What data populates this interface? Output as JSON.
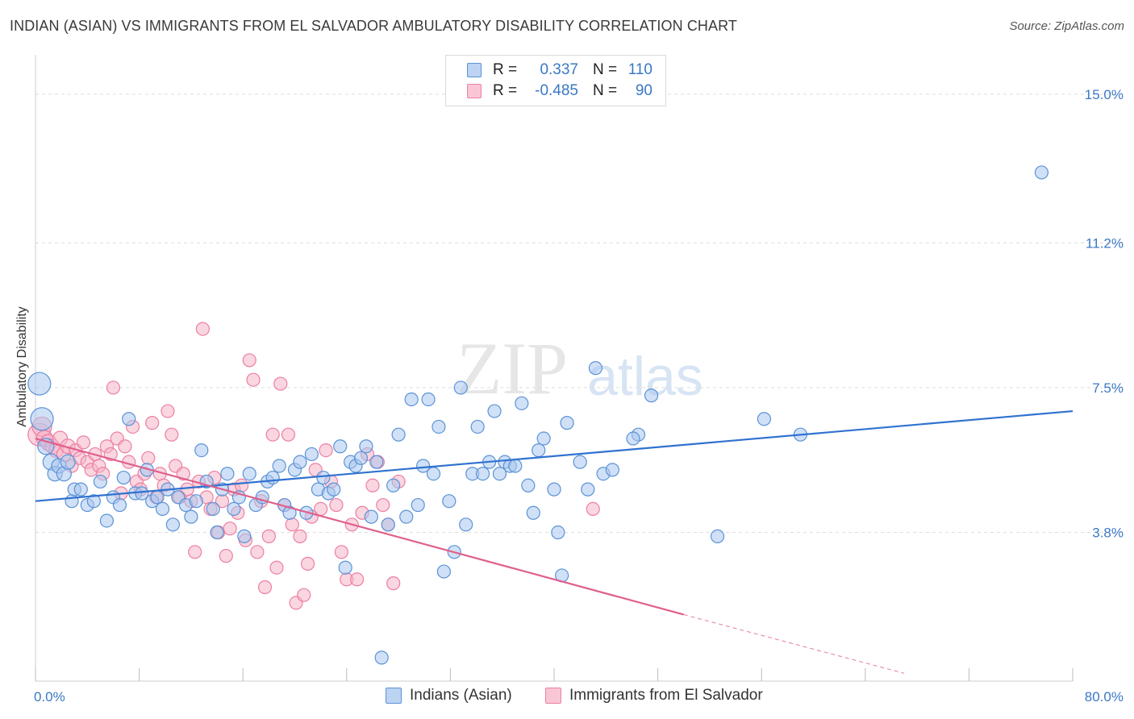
{
  "title": "INDIAN (ASIAN) VS IMMIGRANTS FROM EL SALVADOR AMBULATORY DISABILITY CORRELATION CHART",
  "source": "Source: ZipAtlas.com",
  "watermark": {
    "zip": "ZIP",
    "atlas": "atlas"
  },
  "legend": {
    "rows": [
      {
        "r_label": "R =",
        "r_value": "0.337",
        "n_label": "N =",
        "n_value": "110"
      },
      {
        "r_label": "R =",
        "r_value": "-0.485",
        "n_label": "N =",
        "n_value": "90"
      }
    ]
  },
  "colors": {
    "blue_fill": "#a9c7ee",
    "blue_stroke": "#5b93d6",
    "blue_line": "#2f72d0",
    "pink_fill": "#f6b4c9",
    "pink_stroke": "#ec7fa3",
    "pink_line": "#e0608c",
    "grid": "#dddddd",
    "tick_text": "#3b78c4"
  },
  "chart_data": {
    "type": "scatter",
    "title": "INDIAN (ASIAN) VS IMMIGRANTS FROM EL SALVADOR AMBULATORY DISABILITY CORRELATION CHART",
    "xlabel": "",
    "ylabel": "Ambulatory Disability",
    "xlim": [
      0,
      80
    ],
    "ylim": [
      0,
      15.8
    ],
    "x_tick_labels": [
      "0.0%",
      "80.0%"
    ],
    "y_ticks": [
      3.8,
      7.5,
      11.2,
      15.0
    ],
    "y_tick_labels": [
      "3.8%",
      "7.5%",
      "11.2%",
      "15.0%"
    ],
    "grid": true,
    "legend_position": "top-center",
    "series": [
      {
        "name": "Indians (Asian)",
        "color": "#5b93d6",
        "trend": {
          "x": [
            0,
            80
          ],
          "y": [
            4.6,
            6.9
          ]
        },
        "points": [
          [
            0.3,
            7.6,
            14
          ],
          [
            0.5,
            6.7,
            14
          ],
          [
            0.8,
            6.0,
            10
          ],
          [
            1.2,
            5.6,
            10
          ],
          [
            1.5,
            5.3,
            9
          ],
          [
            1.8,
            5.5,
            9
          ],
          [
            2.2,
            5.3,
            9
          ],
          [
            2.5,
            5.6,
            9
          ],
          [
            2.8,
            4.6,
            8
          ],
          [
            3.0,
            4.9,
            8
          ],
          [
            3.5,
            4.9,
            8
          ],
          [
            4.0,
            4.5,
            8
          ],
          [
            4.5,
            4.6,
            8
          ],
          [
            5.0,
            5.1,
            8
          ],
          [
            5.5,
            4.1,
            8
          ],
          [
            6.0,
            4.7,
            8
          ],
          [
            6.5,
            4.5,
            8
          ],
          [
            6.8,
            5.2,
            8
          ],
          [
            7.2,
            6.7,
            8
          ],
          [
            7.7,
            4.8,
            8
          ],
          [
            8.2,
            4.8,
            8
          ],
          [
            8.6,
            5.4,
            8
          ],
          [
            9.0,
            4.6,
            8
          ],
          [
            9.4,
            4.7,
            8
          ],
          [
            9.8,
            4.4,
            8
          ],
          [
            10.2,
            4.9,
            8
          ],
          [
            10.6,
            4.0,
            8
          ],
          [
            11.0,
            4.7,
            8
          ],
          [
            11.6,
            4.5,
            8
          ],
          [
            12.0,
            4.2,
            8
          ],
          [
            12.4,
            4.6,
            8
          ],
          [
            12.8,
            5.9,
            8
          ],
          [
            13.2,
            5.1,
            8
          ],
          [
            13.7,
            4.4,
            8
          ],
          [
            14.0,
            3.8,
            8
          ],
          [
            14.4,
            4.9,
            8
          ],
          [
            14.8,
            5.3,
            8
          ],
          [
            15.3,
            4.4,
            8
          ],
          [
            15.7,
            4.7,
            8
          ],
          [
            16.1,
            3.7,
            8
          ],
          [
            16.5,
            5.3,
            8
          ],
          [
            17.0,
            4.5,
            8
          ],
          [
            17.5,
            4.7,
            8
          ],
          [
            17.9,
            5.1,
            8
          ],
          [
            18.3,
            5.2,
            8
          ],
          [
            18.8,
            5.5,
            8
          ],
          [
            19.2,
            4.5,
            8
          ],
          [
            19.6,
            4.3,
            8
          ],
          [
            20.0,
            5.4,
            8
          ],
          [
            20.4,
            5.6,
            8
          ],
          [
            20.9,
            4.3,
            8
          ],
          [
            21.3,
            5.8,
            8
          ],
          [
            21.8,
            4.9,
            8
          ],
          [
            22.2,
            5.2,
            8
          ],
          [
            22.6,
            4.8,
            8
          ],
          [
            23.0,
            4.9,
            8
          ],
          [
            23.5,
            6.0,
            8
          ],
          [
            23.9,
            2.9,
            8
          ],
          [
            24.3,
            5.6,
            8
          ],
          [
            24.7,
            5.5,
            8
          ],
          [
            25.1,
            5.7,
            8
          ],
          [
            25.5,
            6.0,
            8
          ],
          [
            25.9,
            4.2,
            8
          ],
          [
            26.3,
            5.6,
            8
          ],
          [
            26.7,
            0.6,
            8
          ],
          [
            27.2,
            4.0,
            8
          ],
          [
            27.6,
            5.0,
            8
          ],
          [
            28.0,
            6.3,
            8
          ],
          [
            28.6,
            4.2,
            8
          ],
          [
            29.0,
            7.2,
            8
          ],
          [
            29.5,
            4.5,
            8
          ],
          [
            29.9,
            5.5,
            8
          ],
          [
            30.3,
            7.2,
            8
          ],
          [
            30.7,
            5.3,
            8
          ],
          [
            31.1,
            6.5,
            8
          ],
          [
            31.5,
            2.8,
            8
          ],
          [
            31.9,
            4.6,
            8
          ],
          [
            32.3,
            3.3,
            8
          ],
          [
            32.8,
            7.5,
            8
          ],
          [
            33.2,
            4.0,
            8
          ],
          [
            33.7,
            5.3,
            8
          ],
          [
            34.1,
            6.5,
            8
          ],
          [
            34.5,
            5.3,
            8
          ],
          [
            35.0,
            5.6,
            8
          ],
          [
            35.4,
            6.9,
            8
          ],
          [
            35.8,
            5.3,
            8
          ],
          [
            36.2,
            5.6,
            8
          ],
          [
            36.6,
            5.5,
            8
          ],
          [
            37.0,
            5.5,
            8
          ],
          [
            37.5,
            7.1,
            8
          ],
          [
            38.0,
            5.0,
            8
          ],
          [
            38.4,
            4.3,
            8
          ],
          [
            38.8,
            5.9,
            8
          ],
          [
            39.2,
            6.2,
            8
          ],
          [
            40.0,
            4.9,
            8
          ],
          [
            40.3,
            3.8,
            8
          ],
          [
            40.6,
            2.7,
            8
          ],
          [
            41.0,
            6.6,
            8
          ],
          [
            42.0,
            5.6,
            8
          ],
          [
            42.6,
            4.9,
            8
          ],
          [
            43.2,
            8.0,
            8
          ],
          [
            43.8,
            5.3,
            8
          ],
          [
            44.5,
            5.4,
            8
          ],
          [
            46.5,
            6.3,
            8
          ],
          [
            47.5,
            7.3,
            8
          ],
          [
            52.6,
            3.7,
            8
          ],
          [
            56.2,
            6.7,
            8
          ],
          [
            59.0,
            6.3,
            8
          ],
          [
            77.6,
            13.0,
            8
          ],
          [
            46.1,
            6.2,
            8
          ]
        ]
      },
      {
        "name": "Immigrants from El Salvador",
        "color": "#ec7fa3",
        "trend": {
          "x": [
            0,
            50
          ],
          "y": [
            6.2,
            1.7
          ]
        },
        "trend_dashed": {
          "x": [
            50,
            67
          ],
          "y": [
            1.7,
            0.2
          ]
        },
        "points": [
          [
            0.3,
            6.3,
            14
          ],
          [
            0.5,
            6.5,
            12
          ],
          [
            0.7,
            6.2,
            10
          ],
          [
            1.0,
            6.1,
            10
          ],
          [
            1.3,
            6.0,
            9
          ],
          [
            1.6,
            5.9,
            9
          ],
          [
            1.9,
            6.2,
            9
          ],
          [
            2.2,
            5.8,
            9
          ],
          [
            2.5,
            6.0,
            9
          ],
          [
            2.8,
            5.5,
            8
          ],
          [
            3.1,
            5.9,
            8
          ],
          [
            3.4,
            5.7,
            8
          ],
          [
            3.7,
            6.1,
            8
          ],
          [
            4.0,
            5.6,
            8
          ],
          [
            4.3,
            5.4,
            8
          ],
          [
            4.6,
            5.8,
            8
          ],
          [
            4.9,
            5.5,
            8
          ],
          [
            5.2,
            5.3,
            8
          ],
          [
            5.5,
            6.0,
            8
          ],
          [
            5.8,
            5.8,
            8
          ],
          [
            6.0,
            7.5,
            8
          ],
          [
            6.3,
            6.2,
            8
          ],
          [
            6.6,
            4.8,
            8
          ],
          [
            6.9,
            6.0,
            8
          ],
          [
            7.2,
            5.6,
            8
          ],
          [
            7.5,
            6.5,
            8
          ],
          [
            7.8,
            5.1,
            8
          ],
          [
            8.1,
            4.9,
            8
          ],
          [
            8.4,
            5.3,
            8
          ],
          [
            8.7,
            5.7,
            8
          ],
          [
            9.0,
            6.6,
            8
          ],
          [
            9.3,
            4.7,
            8
          ],
          [
            9.6,
            5.3,
            8
          ],
          [
            9.9,
            5.0,
            8
          ],
          [
            10.2,
            6.9,
            8
          ],
          [
            10.5,
            6.3,
            8
          ],
          [
            10.8,
            5.5,
            8
          ],
          [
            11.1,
            4.7,
            8
          ],
          [
            11.4,
            5.3,
            8
          ],
          [
            11.7,
            4.9,
            8
          ],
          [
            12.0,
            4.6,
            8
          ],
          [
            12.3,
            3.3,
            8
          ],
          [
            12.6,
            5.1,
            8
          ],
          [
            12.9,
            9.0,
            8
          ],
          [
            13.2,
            4.7,
            8
          ],
          [
            13.5,
            4.4,
            8
          ],
          [
            13.8,
            5.2,
            8
          ],
          [
            14.1,
            3.8,
            8
          ],
          [
            14.4,
            4.6,
            8
          ],
          [
            14.7,
            3.2,
            8
          ],
          [
            15.0,
            3.9,
            8
          ],
          [
            15.3,
            4.9,
            8
          ],
          [
            15.6,
            4.3,
            8
          ],
          [
            15.9,
            5.0,
            8
          ],
          [
            16.2,
            3.6,
            8
          ],
          [
            16.5,
            8.2,
            8
          ],
          [
            16.8,
            7.7,
            8
          ],
          [
            17.1,
            3.3,
            8
          ],
          [
            17.4,
            4.6,
            8
          ],
          [
            17.7,
            2.4,
            8
          ],
          [
            18.0,
            3.7,
            8
          ],
          [
            18.3,
            6.3,
            8
          ],
          [
            18.6,
            2.9,
            8
          ],
          [
            18.9,
            7.6,
            8
          ],
          [
            19.2,
            4.5,
            8
          ],
          [
            19.5,
            6.3,
            8
          ],
          [
            19.8,
            4.0,
            8
          ],
          [
            20.1,
            2.0,
            8
          ],
          [
            20.4,
            3.7,
            8
          ],
          [
            20.7,
            2.2,
            8
          ],
          [
            21.0,
            3.0,
            8
          ],
          [
            21.3,
            4.2,
            8
          ],
          [
            21.6,
            5.4,
            8
          ],
          [
            22.0,
            4.4,
            8
          ],
          [
            22.4,
            5.9,
            8
          ],
          [
            22.8,
            5.1,
            8
          ],
          [
            23.2,
            4.5,
            8
          ],
          [
            23.6,
            3.3,
            8
          ],
          [
            24.0,
            2.6,
            8
          ],
          [
            24.4,
            4.0,
            8
          ],
          [
            24.8,
            2.6,
            8
          ],
          [
            25.2,
            4.3,
            8
          ],
          [
            25.6,
            5.8,
            8
          ],
          [
            26.0,
            5.0,
            8
          ],
          [
            26.4,
            5.6,
            8
          ],
          [
            26.8,
            4.5,
            8
          ],
          [
            27.2,
            4.0,
            8
          ],
          [
            27.6,
            2.5,
            8
          ],
          [
            28.0,
            5.1,
            8
          ],
          [
            43.0,
            4.4,
            8
          ]
        ]
      }
    ]
  },
  "bottom_legend": [
    {
      "label": "Indians (Asian)"
    },
    {
      "label": "Immigrants from El Salvador"
    }
  ]
}
